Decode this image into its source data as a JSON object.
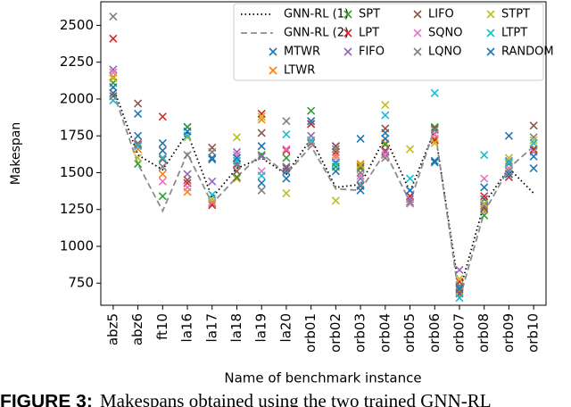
{
  "chart_data": {
    "type": "mixed",
    "x_label": "Name of benchmark instance",
    "y_label": "Makespan",
    "caption_label": "FIGURE 3:",
    "caption": "Makespans obtained using the two trained GNN-RL",
    "categories": [
      "abz5",
      "abz6",
      "ft10",
      "la16",
      "la17",
      "la18",
      "la19",
      "la20",
      "orb01",
      "orb02",
      "orb03",
      "orb04",
      "orb05",
      "orb06",
      "orb07",
      "orb08",
      "orb09",
      "orb10"
    ],
    "ylim": [
      600,
      2660
    ],
    "yticks": [
      750,
      1000,
      1250,
      1500,
      1750,
      2000,
      2250,
      2500
    ],
    "series": [
      {
        "name": "GNN-RL (1)",
        "type": "line",
        "linestyle": "dotted",
        "color": "#000000",
        "values": [
          2080,
          1620,
          1520,
          1770,
          1330,
          1530,
          1600,
          1490,
          1730,
          1400,
          1420,
          1740,
          1370,
          1790,
          690,
          1290,
          1530,
          1360
        ]
      },
      {
        "name": "GNN-RL (2)",
        "type": "line",
        "linestyle": "dashed",
        "color": "#8c8c8c",
        "values": [
          2050,
          1560,
          1240,
          1630,
          1290,
          1470,
          1630,
          1490,
          1680,
          1390,
          1380,
          1640,
          1300,
          1800,
          640,
          1230,
          1530,
          1680
        ]
      },
      {
        "name": "MTWR",
        "type": "scatter",
        "color": "#1f77b4",
        "values": [
          2040,
          1900,
          1700,
          1810,
          1590,
          1600,
          1680,
          1510,
          1830,
          1570,
          1730,
          1770,
          1380,
          1570,
          720,
          1320,
          1750,
          1530
        ]
      },
      {
        "name": "LTWR",
        "type": "scatter",
        "color": "#ff7f0e",
        "values": [
          2150,
          1660,
          1490,
          1370,
          1290,
          1460,
          1860,
          1540,
          1700,
          1620,
          1560,
          1700,
          1340,
          1730,
          700,
          1250,
          1490,
          1660
        ]
      },
      {
        "name": "SPT",
        "type": "scatter",
        "color": "#2ca02c",
        "values": [
          2110,
          1560,
          1340,
          1810,
          1300,
          1470,
          1620,
          1600,
          1920,
          1540,
          1530,
          1690,
          1300,
          1810,
          730,
          1210,
          1560,
          1650
        ]
      },
      {
        "name": "LPT",
        "type": "scatter",
        "color": "#d62728",
        "values": [
          2410,
          1690,
          1880,
          1430,
          1280,
          1560,
          1900,
          1650,
          1830,
          1640,
          1410,
          1650,
          1340,
          1720,
          760,
          1340,
          1470,
          1660
        ]
      },
      {
        "name": "FIFO",
        "type": "scatter",
        "color": "#9467bd",
        "values": [
          2200,
          1700,
          1600,
          1490,
          1440,
          1640,
          1610,
          1540,
          1750,
          1680,
          1460,
          1640,
          1320,
          1760,
          840,
          1270,
          1580,
          1700
        ]
      },
      {
        "name": "LIFO",
        "type": "scatter",
        "color": "#8c564b",
        "values": [
          2020,
          1970,
          1590,
          1450,
          1670,
          1510,
          1770,
          1530,
          1700,
          1680,
          1540,
          1800,
          1290,
          1800,
          680,
          1260,
          1490,
          1820
        ]
      },
      {
        "name": "SQNO",
        "type": "scatter",
        "color": "#e377c2",
        "values": [
          2180,
          1700,
          1440,
          1400,
          1300,
          1620,
          1510,
          1660,
          1710,
          1600,
          1480,
          1620,
          1290,
          1760,
          710,
          1460,
          1530,
          1640
        ]
      },
      {
        "name": "LQNO",
        "type": "scatter",
        "color": "#7f7f7f",
        "values": [
          2560,
          1700,
          1540,
          1620,
          1640,
          1550,
          1380,
          1850,
          1850,
          1660,
          1500,
          1600,
          1300,
          1790,
          730,
          1280,
          1510,
          1740
        ]
      },
      {
        "name": "STPT",
        "type": "scatter",
        "color": "#bcbd22",
        "values": [
          2140,
          1600,
          1650,
          1740,
          1320,
          1740,
          1880,
          1360,
          1720,
          1310,
          1550,
          1960,
          1660,
          1700,
          780,
          1290,
          1600,
          1720
        ]
      },
      {
        "name": "LTPT",
        "type": "scatter",
        "color": "#17becf",
        "values": [
          1990,
          1680,
          1600,
          1750,
          1350,
          1580,
          1480,
          1760,
          1720,
          1560,
          1420,
          1890,
          1460,
          2040,
          650,
          1620,
          1570,
          1700
        ]
      },
      {
        "name": "RANDOM",
        "type": "scatter",
        "color": "#1f77b4",
        "values": [
          2080,
          1750,
          1650,
          1780,
          1600,
          1600,
          1430,
          1460,
          1850,
          1510,
          1380,
          1730,
          1380,
          1580,
          710,
          1400,
          1490,
          1610
        ]
      }
    ]
  }
}
